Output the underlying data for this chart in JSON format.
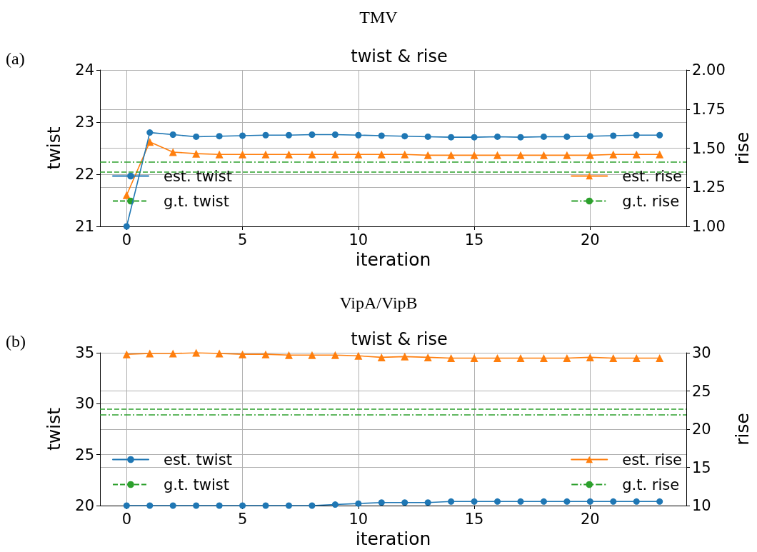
{
  "chart_data": [
    {
      "type": "line",
      "title": "twist & rise",
      "annotations": [
        "TMV",
        "(a)"
      ],
      "xlabel": "iteration",
      "ylabel": "twist",
      "y2label": "rise",
      "x": [
        0,
        1,
        2,
        3,
        4,
        5,
        6,
        7,
        8,
        9,
        10,
        11,
        12,
        13,
        14,
        15,
        16,
        17,
        18,
        19,
        20,
        21,
        22,
        23
      ],
      "xlim": [
        -1.15,
        24.15
      ],
      "xticks": [
        0,
        5,
        10,
        15,
        20
      ],
      "ylim": [
        21,
        24
      ],
      "yticks": [
        21,
        22,
        23,
        24
      ],
      "y2lim": [
        1.0,
        2.0
      ],
      "y2ticks": [
        {
          "value": 1.0,
          "label": "1.00"
        },
        {
          "value": 1.25,
          "label": "1.25"
        },
        {
          "value": 1.5,
          "label": "1.50"
        },
        {
          "value": 1.75,
          "label": "1.75"
        },
        {
          "value": 2.0,
          "label": "2.00"
        }
      ],
      "grid": true,
      "legend": "bottom",
      "series": [
        {
          "name": "est. twist",
          "color": "#1f77b4",
          "marker": "circle",
          "line_style": "solid",
          "values": [
            21.0,
            22.8,
            22.76,
            22.72,
            22.73,
            22.74,
            22.75,
            22.75,
            22.76,
            22.76,
            22.75,
            22.74,
            22.73,
            22.72,
            22.71,
            22.71,
            22.72,
            22.71,
            22.72,
            22.72,
            22.73,
            22.74,
            22.75,
            22.75
          ]
        },
        {
          "name": "est. rise",
          "color": "#ff7f0e",
          "marker": "triangle",
          "line_style": "solid",
          "axis": "y2",
          "values": [
            1.2,
            1.54,
            1.475,
            1.465,
            1.46,
            1.46,
            1.46,
            1.46,
            1.46,
            1.46,
            1.46,
            1.46,
            1.46,
            1.455,
            1.455,
            1.455,
            1.455,
            1.455,
            1.455,
            1.455,
            1.455,
            1.46,
            1.46,
            1.46
          ]
        }
      ],
      "ref_lines": [
        {
          "axis": "y",
          "value": 22.04,
          "label": "g.t. twist",
          "color": "#2ca02c",
          "line_style": "dashed"
        },
        {
          "axis": "y2",
          "value": 1.41,
          "label": "g.t. rise",
          "color": "#2ca02c",
          "line_style": "dashdot"
        }
      ]
    },
    {
      "type": "line",
      "title": "twist & rise",
      "annotations": [
        "VipA/VipB",
        "(b)"
      ],
      "xlabel": "iteration",
      "ylabel": "twist",
      "y2label": "rise",
      "x": [
        0,
        1,
        2,
        3,
        4,
        5,
        6,
        7,
        8,
        9,
        10,
        11,
        12,
        13,
        14,
        15,
        16,
        17,
        18,
        19,
        20,
        21,
        22,
        23
      ],
      "xlim": [
        -1.15,
        24.15
      ],
      "xticks": [
        0,
        5,
        10,
        15,
        20
      ],
      "ylim": [
        20,
        35
      ],
      "yticks": [
        20,
        25,
        30,
        35
      ],
      "y2lim": [
        10,
        30
      ],
      "y2ticks": [
        10,
        15,
        20,
        25,
        30
      ],
      "grid": true,
      "legend": "bottom",
      "series": [
        {
          "name": "est. twist",
          "color": "#1f77b4",
          "marker": "circle",
          "line_style": "solid",
          "values": [
            20,
            20,
            20,
            20,
            20,
            20,
            20,
            20,
            20,
            20.1,
            20.2,
            20.3,
            20.3,
            20.3,
            20.4,
            20.4,
            20.4,
            20.4,
            20.4,
            20.4,
            20.4,
            20.4,
            20.4,
            20.4
          ]
        },
        {
          "name": "est. rise",
          "color": "#ff7f0e",
          "marker": "triangle",
          "line_style": "solid",
          "axis": "y2",
          "values": [
            29.8,
            29.9,
            29.9,
            30.0,
            29.9,
            29.8,
            29.8,
            29.7,
            29.7,
            29.7,
            29.6,
            29.4,
            29.5,
            29.4,
            29.3,
            29.3,
            29.3,
            29.3,
            29.3,
            29.3,
            29.4,
            29.3,
            29.3,
            29.3
          ]
        }
      ],
      "ref_lines": [
        {
          "axis": "y",
          "value": 29.45,
          "label": "g.t. twist",
          "color": "#2ca02c",
          "line_style": "dashed"
        },
        {
          "axis": "y2",
          "value": 21.9,
          "label": "g.t. rise",
          "color": "#2ca02c",
          "line_style": "dashdot"
        }
      ]
    }
  ]
}
